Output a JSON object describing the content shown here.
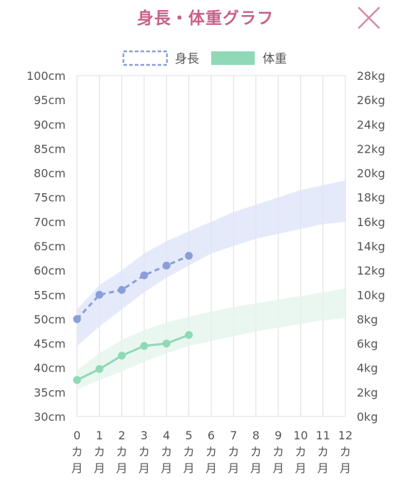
{
  "header": {
    "title": "身長・体重グラフ",
    "close_icon": "close-icon"
  },
  "colors": {
    "title": "#c9608a",
    "close": "#d48aa6",
    "height_line": "#8a9fd9",
    "height_band": "#dfe5fa",
    "weight_line": "#8fd9b6",
    "weight_band": "#e5f5ec",
    "grid": "#dcdcdc"
  },
  "chart_data": {
    "type": "line",
    "legend": {
      "placement": "top-center",
      "items": [
        {
          "label": "身長",
          "style": "dashed-outline"
        },
        {
          "label": "体重",
          "style": "solid-fill"
        }
      ]
    },
    "x": [
      0,
      1,
      2,
      3,
      4,
      5,
      6,
      7,
      8,
      9,
      10,
      11,
      12
    ],
    "x_tick_labels": [
      "0\nカ\n月",
      "1\nカ\n月",
      "2\nカ\n月",
      "3\nカ\n月",
      "4\nカ\n月",
      "5\nカ\n月",
      "6\nカ\n月",
      "7\nカ\n月",
      "8\nカ\n月",
      "9\nカ\n月",
      "10\nカ\n月",
      "11\nカ\n月",
      "12\nカ\n月"
    ],
    "y_left": {
      "range": [
        30,
        100
      ],
      "ticks": [
        30,
        35,
        40,
        45,
        50,
        55,
        60,
        65,
        70,
        75,
        80,
        85,
        90,
        95,
        100
      ],
      "tick_labels": [
        "30cm",
        "35cm",
        "40cm",
        "45cm",
        "50cm",
        "55cm",
        "60cm",
        "65cm",
        "70cm",
        "75cm",
        "80cm",
        "85cm",
        "90cm",
        "95cm",
        "100cm"
      ]
    },
    "y_right": {
      "range": [
        0,
        28
      ],
      "ticks": [
        0,
        2,
        4,
        6,
        8,
        10,
        12,
        14,
        16,
        18,
        20,
        22,
        24,
        26,
        28
      ],
      "tick_labels": [
        "0kg",
        "2kg",
        "4kg",
        "6kg",
        "8kg",
        "10kg",
        "12kg",
        "14kg",
        "16kg",
        "18kg",
        "20kg",
        "22kg",
        "24kg",
        "26kg",
        "28kg"
      ]
    },
    "grid": true,
    "series": [
      {
        "name": "身長",
        "axis": "left",
        "x": [
          0,
          1,
          2,
          3,
          4,
          5
        ],
        "values": [
          50,
          55,
          56,
          59,
          61,
          63
        ],
        "line": "dashed"
      },
      {
        "name": "体重",
        "axis": "right",
        "x": [
          0,
          1,
          2,
          3,
          4,
          5
        ],
        "values": [
          3.0,
          3.9,
          5.0,
          5.8,
          6.0,
          6.7
        ],
        "line": "solid"
      }
    ],
    "bands": [
      {
        "axis": "left",
        "x": [
          0,
          1,
          2,
          3,
          4,
          5,
          6,
          7,
          8,
          9,
          10,
          11,
          12
        ],
        "lower": [
          44.5,
          48.5,
          52,
          55.5,
          58.5,
          61,
          63.5,
          65,
          66.5,
          67.5,
          68.5,
          69.5,
          70
        ],
        "upper": [
          52,
          57,
          60,
          63.5,
          66,
          68,
          70,
          72,
          73.5,
          75,
          76.5,
          77.5,
          78.5
        ]
      },
      {
        "axis": "right",
        "x": [
          0,
          1,
          2,
          3,
          4,
          5,
          6,
          7,
          8,
          9,
          10,
          11,
          12
        ],
        "lower": [
          2.2,
          3.0,
          3.7,
          4.5,
          5.2,
          5.8,
          6.2,
          6.6,
          7.0,
          7.3,
          7.6,
          7.9,
          8.1
        ],
        "upper": [
          3.8,
          5.2,
          6.3,
          7.1,
          7.7,
          8.2,
          8.6,
          9.0,
          9.3,
          9.6,
          9.9,
          10.2,
          10.5
        ]
      }
    ]
  }
}
